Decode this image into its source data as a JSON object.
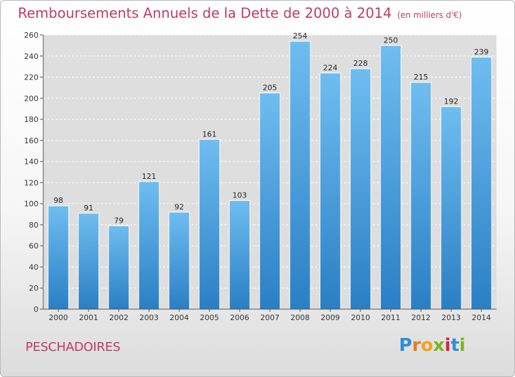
{
  "chart_data": {
    "type": "bar",
    "title": "Remboursements Annuels de la Dette de 2000 à 2014",
    "subtitle": "(en milliers d'€)",
    "categories": [
      "2000",
      "2001",
      "2002",
      "2003",
      "2004",
      "2005",
      "2006",
      "2007",
      "2008",
      "2009",
      "2010",
      "2011",
      "2012",
      "2013",
      "2014"
    ],
    "values": [
      98,
      91,
      79,
      121,
      92,
      161,
      103,
      205,
      254,
      224,
      228,
      250,
      215,
      192,
      239
    ],
    "ylim": [
      0,
      260
    ],
    "yticks": [
      0,
      20,
      40,
      60,
      80,
      100,
      120,
      140,
      160,
      180,
      200,
      220,
      240,
      260
    ],
    "xlabel": "",
    "ylabel": "",
    "grid": true
  },
  "footer": {
    "commune": "PESCHADOIRES",
    "logo_letters": [
      "P",
      "r",
      "o",
      "x",
      "i",
      "t",
      "i"
    ],
    "logo_colors": [
      "#2a8fd8",
      "#e87a1e",
      "#f2a11a",
      "#7ab51d",
      "#d81e4c",
      "#2a8fd8",
      "#7ab51d"
    ]
  },
  "colors": {
    "title": "#c03a6a",
    "bar_top": "#6fbdf0",
    "bar_bottom": "#2a7fc4"
  }
}
